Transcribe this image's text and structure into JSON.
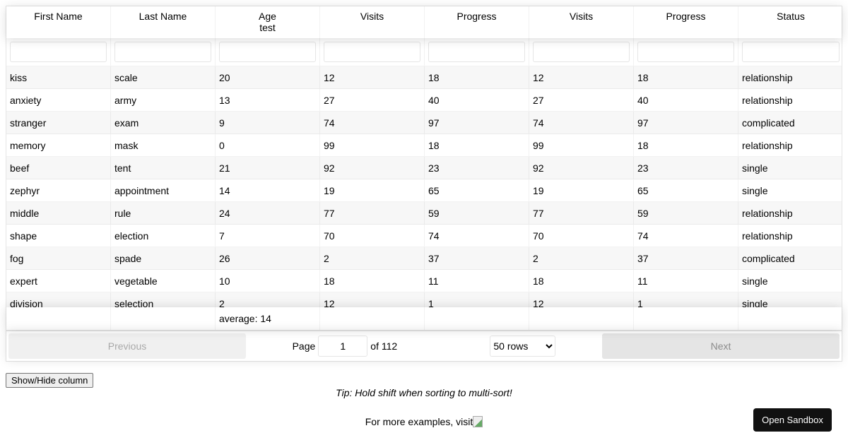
{
  "columns": [
    [
      "First Name",
      ""
    ],
    [
      "Last Name",
      ""
    ],
    [
      "Age",
      "test"
    ],
    [
      "Visits",
      ""
    ],
    [
      "Progress",
      ""
    ],
    [
      "Visits",
      ""
    ],
    [
      "Progress",
      ""
    ],
    [
      "Status",
      ""
    ]
  ],
  "rows": [
    [
      "kiss",
      "scale",
      "20",
      "12",
      "18",
      "12",
      "18",
      "relationship"
    ],
    [
      "anxiety",
      "army",
      "13",
      "27",
      "40",
      "27",
      "40",
      "relationship"
    ],
    [
      "stranger",
      "exam",
      "9",
      "74",
      "97",
      "74",
      "97",
      "complicated"
    ],
    [
      "memory",
      "mask",
      "0",
      "99",
      "18",
      "99",
      "18",
      "relationship"
    ],
    [
      "beef",
      "tent",
      "21",
      "92",
      "23",
      "92",
      "23",
      "single"
    ],
    [
      "zephyr",
      "appointment",
      "14",
      "19",
      "65",
      "19",
      "65",
      "single"
    ],
    [
      "middle",
      "rule",
      "24",
      "77",
      "59",
      "77",
      "59",
      "relationship"
    ],
    [
      "shape",
      "election",
      "7",
      "70",
      "74",
      "70",
      "74",
      "relationship"
    ],
    [
      "fog",
      "spade",
      "26",
      "2",
      "37",
      "2",
      "37",
      "complicated"
    ],
    [
      "expert",
      "vegetable",
      "10",
      "18",
      "11",
      "18",
      "11",
      "single"
    ],
    [
      "division",
      "selection",
      "2",
      "12",
      "1",
      "12",
      "1",
      "single"
    ]
  ],
  "footer": {
    "age": "average: 14"
  },
  "pagination": {
    "previous": "Previous",
    "next": "Next",
    "page_label": "Page",
    "page": "1",
    "of": "of 112",
    "rows_option": "50 rows"
  },
  "show_hide": "Show/Hide column",
  "tip": "Tip: Hold shift when sorting to multi-sort!",
  "more": "For more examples, visit",
  "sandbox": "Open Sandbox"
}
